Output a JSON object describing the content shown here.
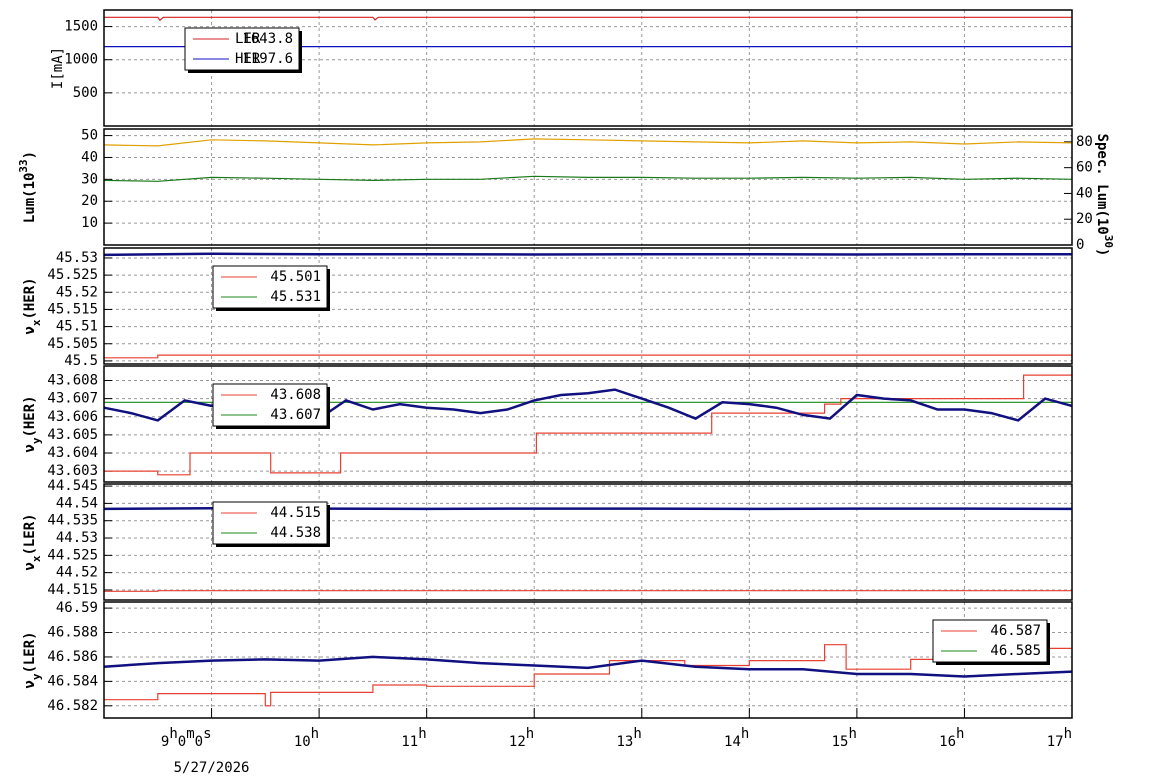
{
  "x_axis": {
    "xlim": [
      8,
      17
    ],
    "xticks": [
      {
        "value": 9,
        "label": "9h0m0s"
      },
      {
        "value": 10,
        "label": "10h"
      },
      {
        "value": 11,
        "label": "11h"
      },
      {
        "value": 12,
        "label": "12h"
      },
      {
        "value": 13,
        "label": "13h"
      },
      {
        "value": 14,
        "label": "14h"
      },
      {
        "value": 15,
        "label": "15h"
      },
      {
        "value": 16,
        "label": "16h"
      },
      {
        "value": 17,
        "label": "17h"
      }
    ],
    "date": "5/27/2026"
  },
  "chart_data": [
    {
      "type": "line",
      "ylabel": [
        "I[mA]"
      ],
      "ylim": [
        0,
        1750
      ],
      "yticks": [
        500,
        1000,
        1500
      ],
      "grid": true,
      "legend": "upper left",
      "legend_items": [
        {
          "name": "LER",
          "value": 1643.8,
          "color": "#d62020"
        },
        {
          "name": "HER",
          "value": 1197.6,
          "color": "#1010c0"
        }
      ],
      "series": [
        {
          "color": "#d62020",
          "x": [
            8,
            8.5,
            8.52,
            8.55,
            10.5,
            10.52,
            10.55,
            17
          ],
          "values": [
            1640,
            1640,
            1595,
            1640,
            1640,
            1600,
            1640,
            1640
          ]
        },
        {
          "color": "#1010c0",
          "x": [
            8,
            17
          ],
          "values": [
            1198,
            1198
          ]
        }
      ]
    },
    {
      "type": "line",
      "ylabel": [
        "Lum(10",
        "33",
        ")"
      ],
      "ylabel_shift": "sup",
      "ylim": [
        0,
        53
      ],
      "yticks": [
        10,
        20,
        30,
        40,
        50
      ],
      "y2label": [
        "Spec. Lum(10",
        "30",
        ")"
      ],
      "y2lim": [
        0,
        90
      ],
      "y2ticks": [
        0,
        20,
        40,
        60,
        80
      ],
      "grid": true,
      "series": [
        {
          "color": "#e0a000",
          "axis": "y2",
          "x": [
            8,
            8.5,
            9,
            9.5,
            10,
            10.5,
            11,
            11.5,
            12,
            12.5,
            13,
            13.5,
            14,
            14.5,
            15,
            15.5,
            16,
            16.5,
            17
          ],
          "values": [
            77.7,
            76.9,
            81.6,
            80.8,
            79.2,
            77.7,
            79.2,
            80,
            82.3,
            81.6,
            80.8,
            80,
            79.2,
            80.8,
            79.2,
            80,
            78.4,
            80,
            79.2
          ]
        },
        {
          "color": "#1a7a1a",
          "x": [
            8,
            8.5,
            9,
            9.5,
            10,
            10.5,
            11,
            11.5,
            12,
            12.5,
            13,
            13.5,
            14,
            14.5,
            15,
            15.5,
            16,
            16.5,
            17
          ],
          "values": [
            29.5,
            29.1,
            30.9,
            30.5,
            30,
            29.5,
            30,
            30,
            31.4,
            30.9,
            30.9,
            30.5,
            30.5,
            30.9,
            30.5,
            30.9,
            30,
            30.5,
            30
          ]
        }
      ]
    },
    {
      "type": "line",
      "ylabel": [
        "ν",
        "x",
        "(HER)"
      ],
      "ylabel_shift": "sub",
      "ylim": [
        45.4991,
        45.5329
      ],
      "yticks": [
        45.5,
        45.505,
        45.51,
        45.515,
        45.52,
        45.525,
        45.53
      ],
      "grid": true,
      "legend": "upper left",
      "legend_items": [
        {
          "value": 45.501,
          "color": "#e84030"
        },
        {
          "value": 45.531,
          "color": "#1a8a1a"
        }
      ],
      "series": [
        {
          "color": "#e84030",
          "x": [
            8,
            8.5,
            8.5,
            17
          ],
          "values": [
            45.5009,
            45.5009,
            45.5017,
            45.5017
          ]
        },
        {
          "color": "#101080",
          "x": [
            8,
            9,
            10,
            11,
            12,
            13,
            14,
            15,
            16,
            17
          ],
          "values": [
            45.5309,
            45.5312,
            45.5311,
            45.5311,
            45.531,
            45.5311,
            45.5311,
            45.531,
            45.5311,
            45.5311
          ]
        }
      ]
    },
    {
      "type": "line",
      "ylabel": [
        "ν",
        "y",
        "(HER)"
      ],
      "ylabel_shift": "sub",
      "ylim": [
        43.6024,
        43.6088
      ],
      "yticks": [
        43.603,
        43.604,
        43.605,
        43.606,
        43.607,
        43.608
      ],
      "grid": true,
      "legend": "upper left",
      "legend_items": [
        {
          "value": 43.608,
          "color": "#e84030"
        },
        {
          "value": 43.607,
          "color": "#1a8a1a"
        }
      ],
      "series": [
        {
          "color": "#1a8a1a",
          "x": [
            8,
            17
          ],
          "values": [
            43.6068,
            43.6068
          ]
        },
        {
          "color": "#e84030",
          "x": [
            8,
            8.5,
            8.5,
            8.8,
            8.8,
            9.55,
            9.55,
            10.2,
            10.2,
            12.02,
            12.02,
            13.65,
            13.65,
            14.7,
            14.7,
            14.85,
            14.85,
            16.55,
            16.55,
            17
          ],
          "values": [
            43.603,
            43.603,
            43.6028,
            43.6028,
            43.604,
            43.604,
            43.6029,
            43.6029,
            43.604,
            43.604,
            43.6051,
            43.6051,
            43.6062,
            43.6062,
            43.6067,
            43.6067,
            43.607,
            43.607,
            43.6083,
            43.6083
          ]
        },
        {
          "color": "#101080",
          "x": [
            8,
            8.25,
            8.5,
            8.75,
            9,
            9.25,
            9.5,
            9.75,
            10,
            10.25,
            10.5,
            10.75,
            11,
            11.25,
            11.5,
            11.75,
            12,
            12.25,
            12.5,
            12.75,
            13,
            13.25,
            13.5,
            13.75,
            14,
            14.25,
            14.5,
            14.75,
            15,
            15.25,
            15.5,
            15.75,
            16,
            16.25,
            16.5,
            16.75,
            17
          ],
          "values": [
            43.6065,
            43.6062,
            43.6058,
            43.6069,
            43.6066,
            43.6072,
            43.6065,
            43.6061,
            43.6059,
            43.6069,
            43.6064,
            43.6067,
            43.6065,
            43.6064,
            43.6062,
            43.6064,
            43.6069,
            43.6072,
            43.6073,
            43.6075,
            43.607,
            43.6065,
            43.6059,
            43.6068,
            43.6067,
            43.6065,
            43.6061,
            43.6059,
            43.6072,
            43.607,
            43.6069,
            43.6064,
            43.6064,
            43.6062,
            43.6058,
            43.607,
            43.6066
          ]
        }
      ]
    },
    {
      "type": "line",
      "ylabel": [
        "ν",
        "x",
        "(LER)"
      ],
      "ylabel_shift": "sub",
      "ylim": [
        44.5121,
        44.5456
      ],
      "yticks": [
        44.515,
        44.52,
        44.525,
        44.53,
        44.535,
        44.54,
        44.545
      ],
      "grid": true,
      "legend": "upper left",
      "legend_items": [
        {
          "value": 44.515,
          "color": "#e84030"
        },
        {
          "value": 44.538,
          "color": "#1a8a1a"
        }
      ],
      "series": [
        {
          "color": "#e84030",
          "x": [
            8,
            8.5,
            8.5,
            17
          ],
          "values": [
            44.5146,
            44.5146,
            44.5148,
            44.5148
          ]
        },
        {
          "color": "#101080",
          "x": [
            8,
            9,
            10,
            11,
            12,
            13,
            14,
            15,
            16,
            17
          ],
          "values": [
            44.5384,
            44.5386,
            44.5385,
            44.5384,
            44.5385,
            44.5385,
            44.5384,
            44.5385,
            44.5385,
            44.5384
          ]
        }
      ]
    },
    {
      "type": "line",
      "ylabel": [
        "ν",
        "y",
        "(LER)"
      ],
      "ylabel_shift": "sub",
      "ylim": [
        46.581,
        46.5905
      ],
      "yticks": [
        46.582,
        46.584,
        46.586,
        46.588,
        46.59
      ],
      "grid": true,
      "legend": "upper right",
      "legend_items": [
        {
          "value": 46.587,
          "color": "#e84030"
        },
        {
          "value": 46.585,
          "color": "#1a8a1a"
        }
      ],
      "series": [
        {
          "color": "#e84030",
          "x": [
            8,
            8.5,
            8.5,
            9.5,
            9.5,
            9.55,
            9.55,
            10.5,
            10.5,
            11,
            11,
            12,
            12,
            12.7,
            12.7,
            13.4,
            13.4,
            14,
            14,
            14.7,
            14.7,
            14.9,
            14.9,
            15.5,
            15.5,
            16.5,
            16.5,
            17
          ],
          "values": [
            46.5825,
            46.5825,
            46.583,
            46.583,
            46.582,
            46.582,
            46.5831,
            46.5831,
            46.5837,
            46.5837,
            46.5836,
            46.5836,
            46.5846,
            46.5846,
            46.5857,
            46.5857,
            46.5853,
            46.5853,
            46.5857,
            46.5857,
            46.587,
            46.587,
            46.585,
            46.585,
            46.5858,
            46.5858,
            46.5867,
            46.5867
          ]
        },
        {
          "color": "#101080",
          "x": [
            8,
            8.5,
            9,
            9.5,
            10,
            10.5,
            11,
            11.5,
            12,
            12.5,
            13,
            13.5,
            14,
            14.5,
            15,
            15.5,
            16,
            16.5,
            17
          ],
          "values": [
            46.5852,
            46.5855,
            46.5857,
            46.5858,
            46.5857,
            46.586,
            46.5858,
            46.5855,
            46.5853,
            46.5851,
            46.5857,
            46.5852,
            46.585,
            46.585,
            46.5846,
            46.5846,
            46.5844,
            46.5846,
            46.5848
          ]
        }
      ]
    }
  ]
}
